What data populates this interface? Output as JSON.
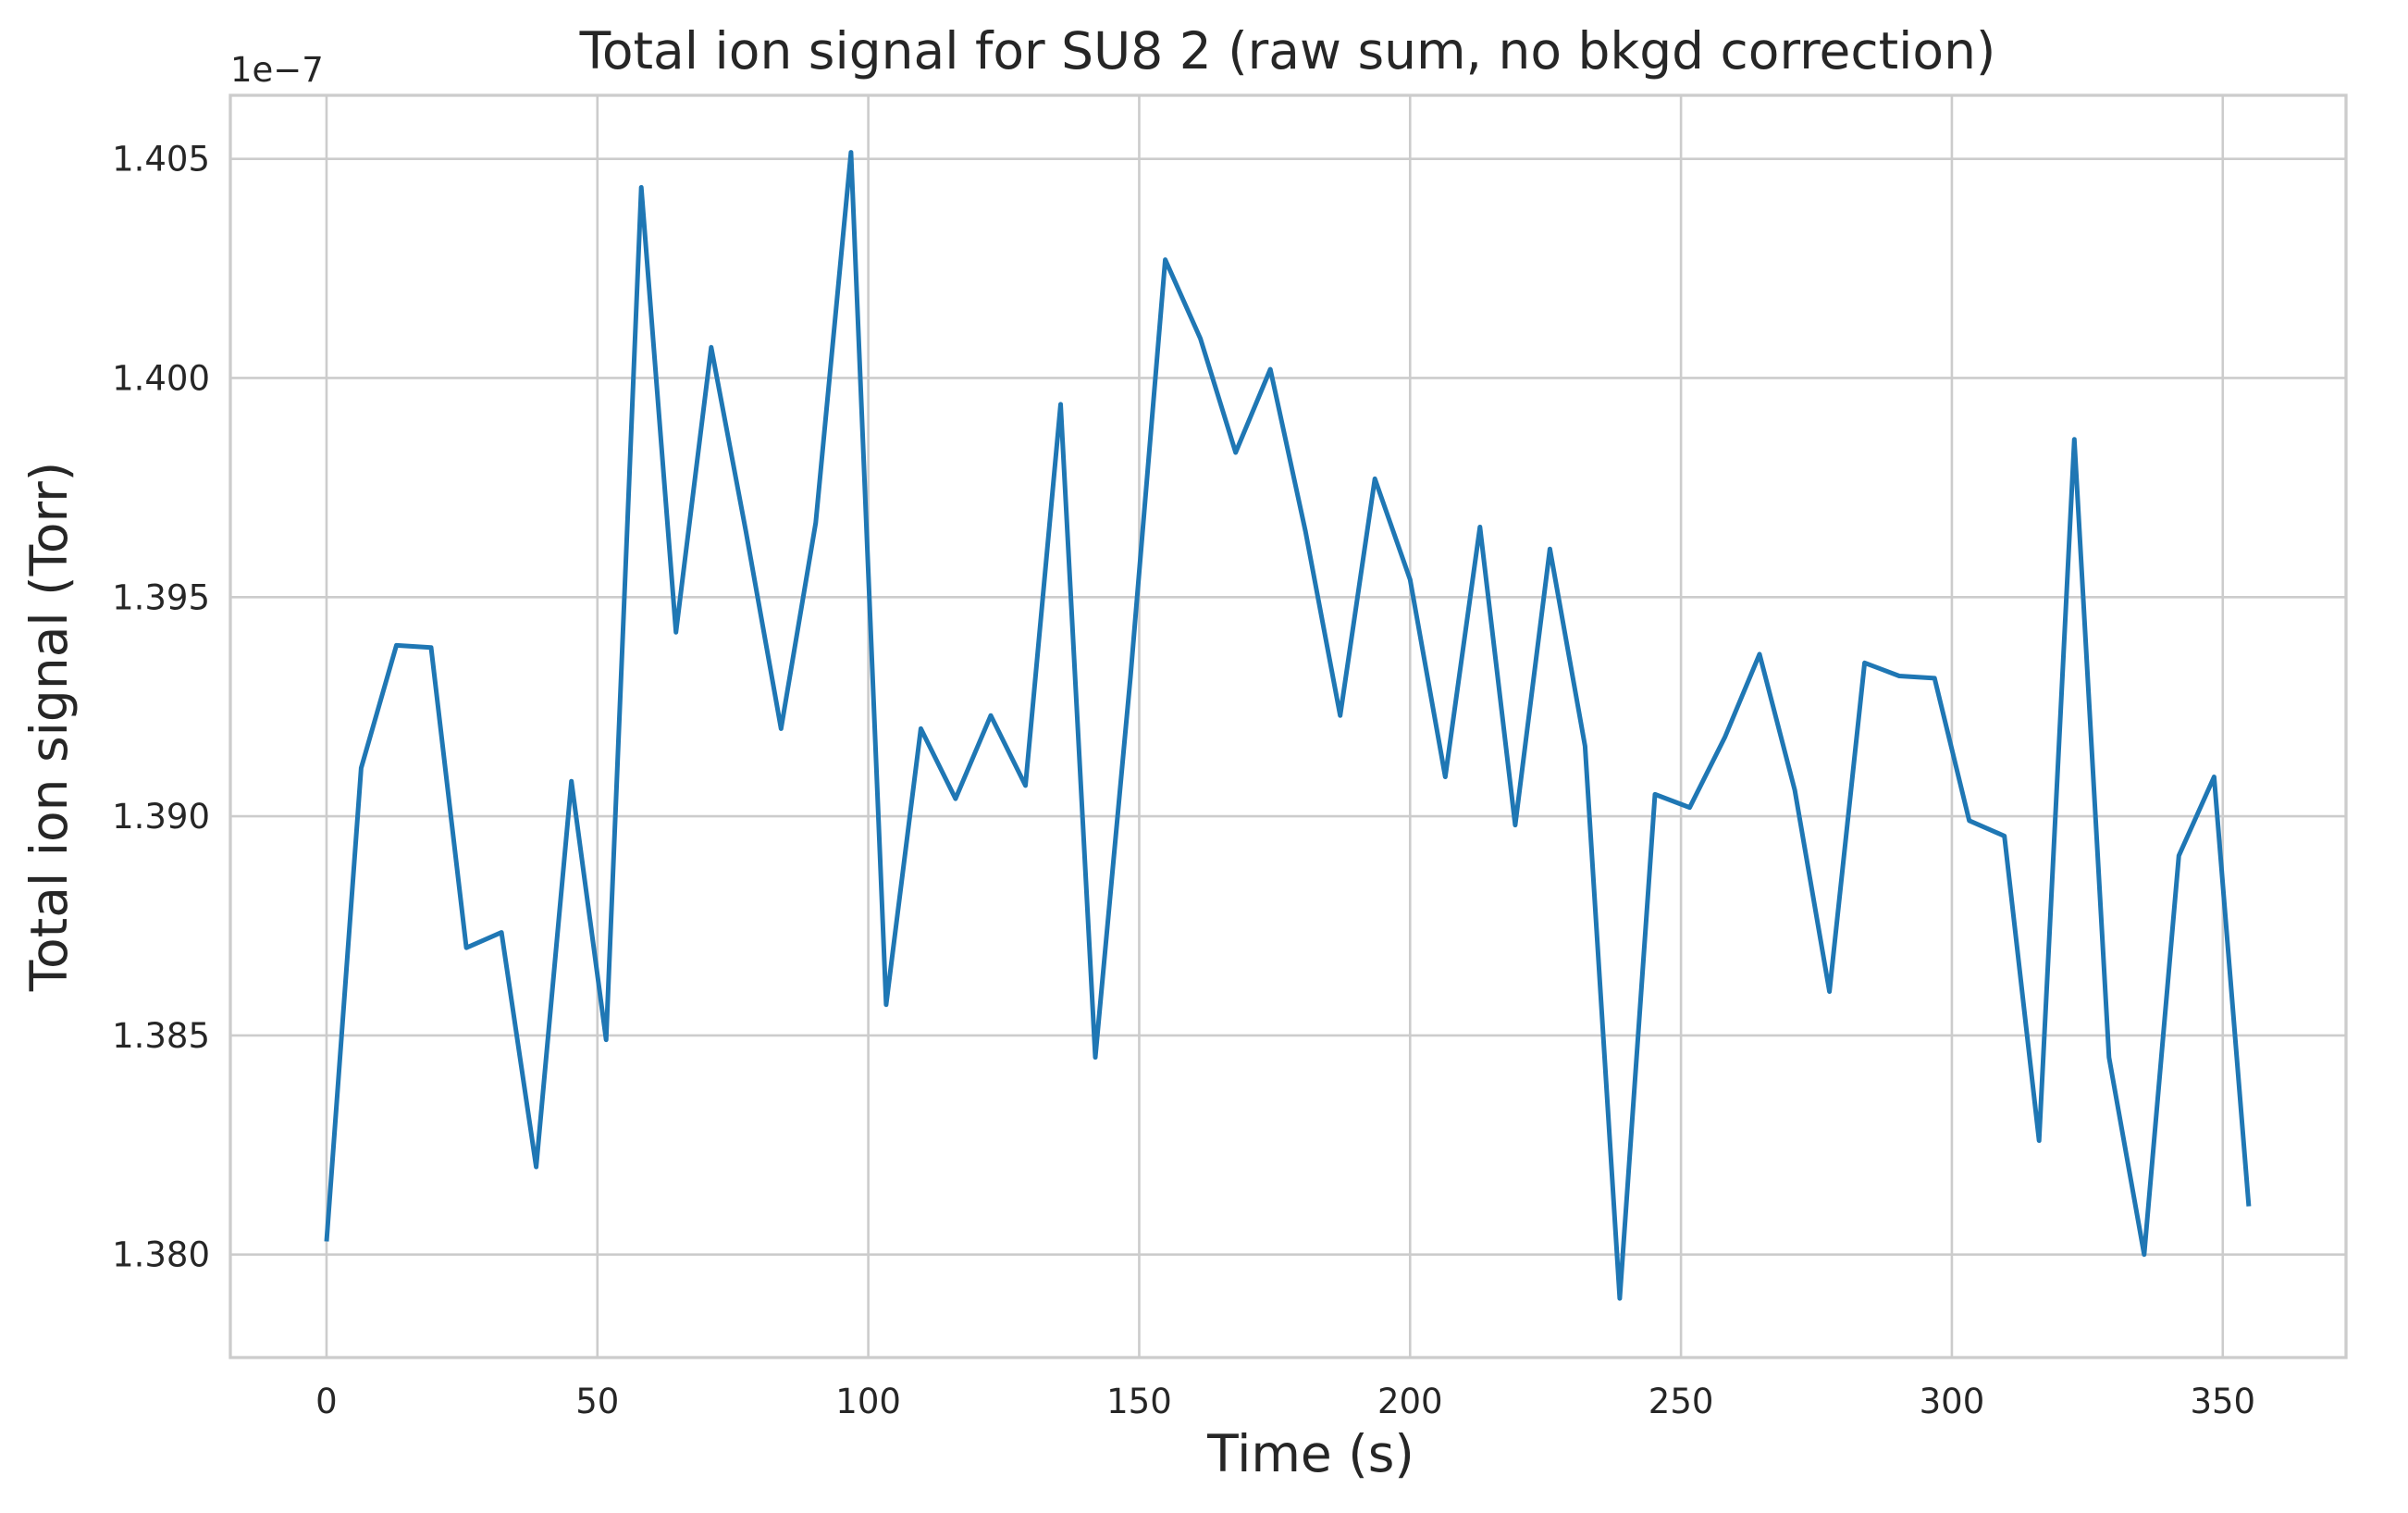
{
  "chart_data": {
    "type": "line",
    "title": "Total ion signal for SU8 2 (raw sum, no bkgd correction)",
    "xlabel": "Time (s)",
    "ylabel": "Total ion signal (Torr)",
    "y_offset_label": "1e−7",
    "xlim": [
      -17.75,
      372.75
    ],
    "ylim": [
      1.37765,
      1.40645
    ],
    "x_ticks": [
      0,
      50,
      100,
      150,
      200,
      250,
      300,
      350
    ],
    "x_tick_labels": [
      "0",
      "50",
      "100",
      "150",
      "200",
      "250",
      "300",
      "350"
    ],
    "y_ticks": [
      1.38,
      1.385,
      1.39,
      1.395,
      1.4,
      1.405
    ],
    "y_tick_labels": [
      "1.380",
      "1.385",
      "1.390",
      "1.395",
      "1.400",
      "1.405"
    ],
    "grid": true,
    "series": [
      {
        "color": "#1f77b4",
        "x": [
          0,
          6.4,
          12.9,
          19.3,
          25.8,
          32.3,
          38.7,
          45.2,
          51.6,
          58.1,
          64.5,
          71.0,
          77.4,
          83.9,
          90.3,
          96.8,
          103.3,
          109.7,
          116.1,
          122.6,
          129.0,
          135.5,
          141.9,
          148.4,
          154.8,
          161.3,
          167.8,
          174.2,
          180.7,
          187.1,
          193.5,
          200.0,
          206.5,
          212.9,
          219.4,
          225.8,
          232.3,
          238.7,
          245.2,
          251.6,
          258.1,
          264.5,
          271.0,
          277.4,
          283.9,
          290.3,
          296.8,
          303.2,
          309.7,
          316.1,
          322.6,
          329.0,
          335.5,
          341.9,
          348.4,
          354.8
        ],
        "y": [
          1.3803,
          1.3911,
          1.3939,
          1.39385,
          1.387,
          1.38735,
          1.382,
          1.3908,
          1.3849,
          1.40435,
          1.3942,
          1.4007,
          1.3965,
          1.392,
          1.3967,
          1.40515,
          1.3857,
          1.392,
          1.3904,
          1.3923,
          1.3907,
          1.3994,
          1.3845,
          1.3932,
          1.4027,
          1.4009,
          1.3983,
          1.4002,
          1.3965,
          1.3923,
          1.3977,
          1.3954,
          1.3909,
          1.3966,
          1.3898,
          1.3961,
          1.3916,
          1.379,
          1.3905,
          1.3902,
          1.3918,
          1.3937,
          1.3906,
          1.386,
          1.3935,
          1.3932,
          1.39315,
          1.3899,
          1.38955,
          1.3826,
          1.3986,
          1.3845,
          1.38,
          1.3891,
          1.3909,
          1.3811
        ]
      }
    ]
  }
}
